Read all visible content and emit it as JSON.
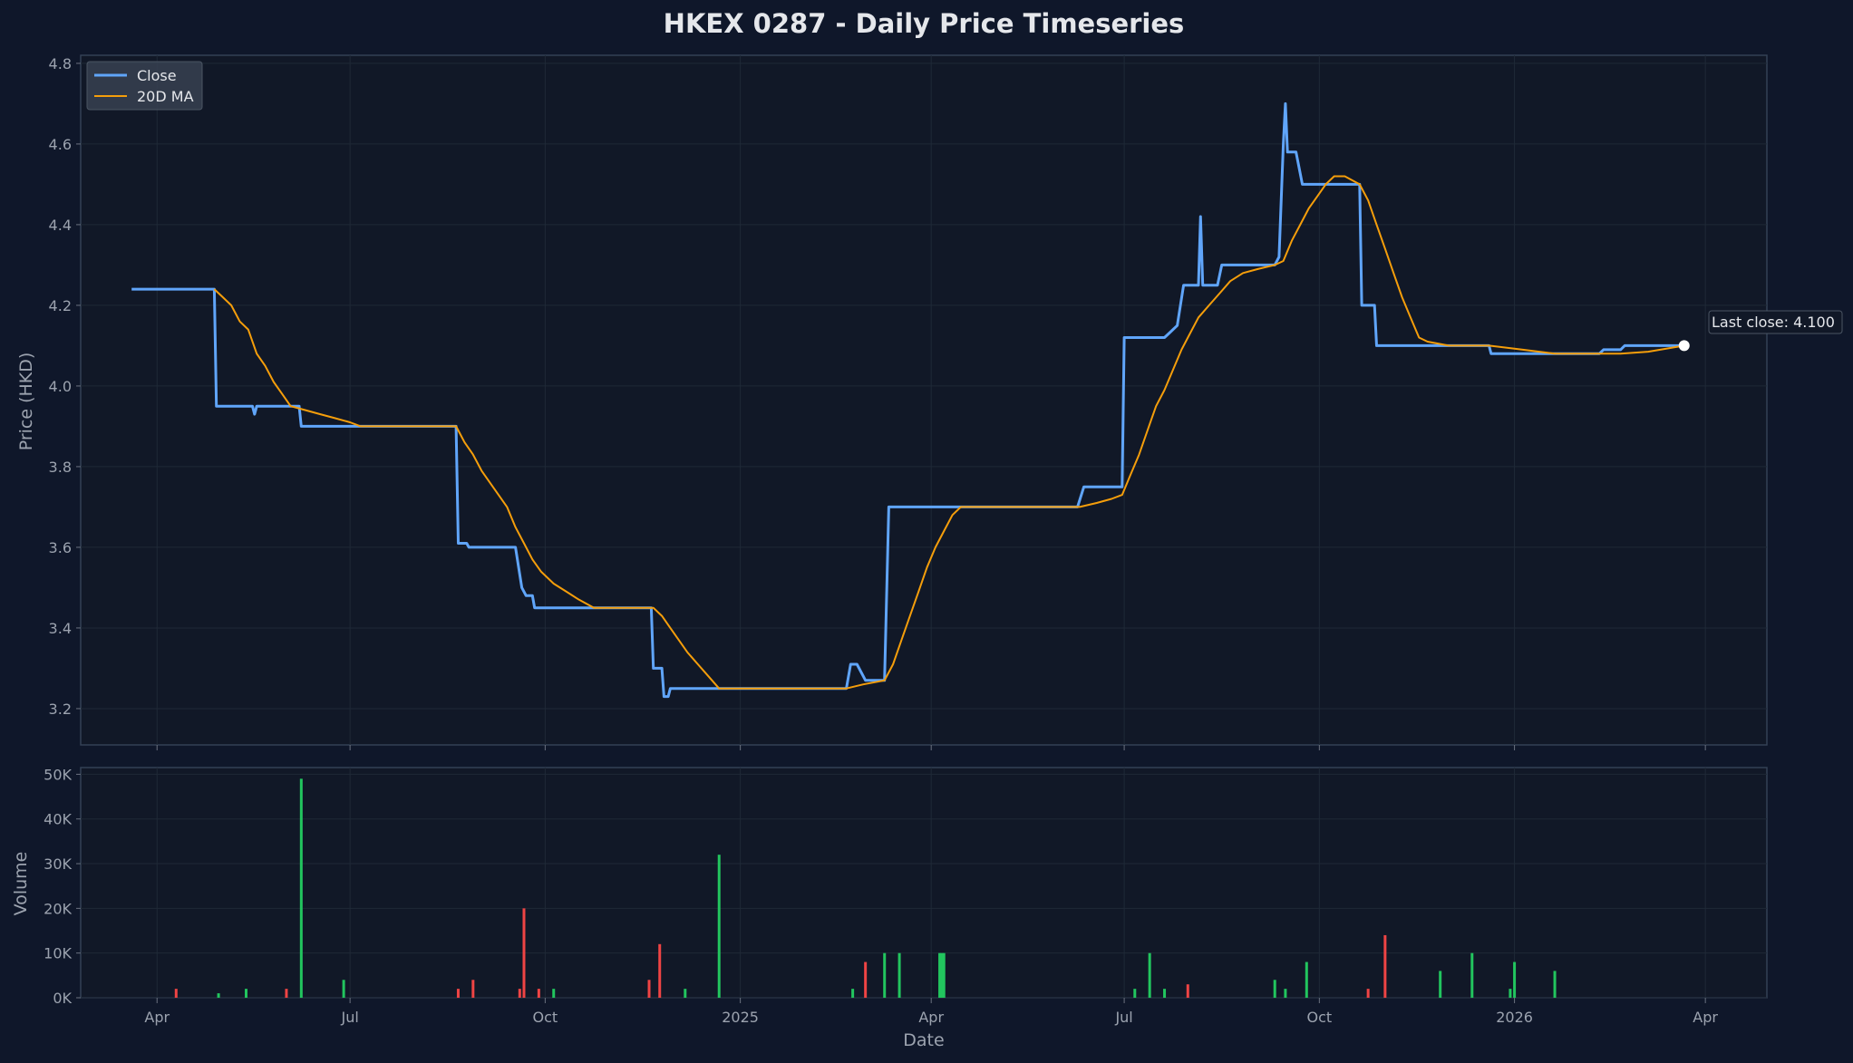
{
  "chart_data": {
    "type": "line",
    "title": "HKEX 0287 - Daily Price Timeseries",
    "xlabel": "Date",
    "ylabel": "Price (HKD)",
    "volume_ylabel": "Volume",
    "x_ticks": [
      "Apr",
      "Jul",
      "Oct",
      "2025",
      "Apr",
      "Jul",
      "Oct",
      "2026",
      "Apr"
    ],
    "x_tick_dates": [
      "2024-04-01",
      "2024-07-01",
      "2024-10-01",
      "2025-01-01",
      "2025-04-01",
      "2025-07-01",
      "2025-10-01",
      "2026-01-01",
      "2026-04-01"
    ],
    "xlim": [
      "2024-02-25",
      "2026-04-30"
    ],
    "ylim": [
      3.11,
      4.82
    ],
    "y_ticks": [
      "3.2",
      "3.4",
      "3.6",
      "3.8",
      "4.0",
      "4.2",
      "4.4",
      "4.6",
      "4.8"
    ],
    "volume_ylim": [
      0,
      51500
    ],
    "volume_ticks": [
      "0K",
      "10K",
      "20K",
      "30K",
      "40K",
      "50K"
    ],
    "legend": {
      "position": "top-left",
      "entries": [
        "Close",
        "20D MA"
      ]
    },
    "grid": true,
    "annotation": "Last close: 4.100",
    "colors": {
      "background": "#0f172a",
      "plot_bg": "#111827",
      "close": "#60a5fa",
      "ma": "#f59e0b",
      "up": "#22c55e",
      "down": "#ef4444",
      "grid": "#1f2937",
      "spine": "#334155"
    },
    "series": [
      {
        "name": "Close",
        "points": [
          [
            "2024-03-20",
            4.24
          ],
          [
            "2024-04-28",
            4.24
          ],
          [
            "2024-04-29",
            3.95
          ],
          [
            "2024-05-16",
            3.95
          ],
          [
            "2024-05-17",
            3.93
          ],
          [
            "2024-05-18",
            3.95
          ],
          [
            "2024-06-07",
            3.95
          ],
          [
            "2024-06-08",
            3.9
          ],
          [
            "2024-08-20",
            3.9
          ],
          [
            "2024-08-21",
            3.61
          ],
          [
            "2024-08-25",
            3.61
          ],
          [
            "2024-08-26",
            3.6
          ],
          [
            "2024-09-17",
            3.6
          ],
          [
            "2024-09-20",
            3.5
          ],
          [
            "2024-09-22",
            3.48
          ],
          [
            "2024-09-25",
            3.48
          ],
          [
            "2024-09-26",
            3.45
          ],
          [
            "2024-11-20",
            3.45
          ],
          [
            "2024-11-21",
            3.3
          ],
          [
            "2024-11-25",
            3.3
          ],
          [
            "2024-11-26",
            3.23
          ],
          [
            "2024-11-28",
            3.23
          ],
          [
            "2024-11-29",
            3.25
          ],
          [
            "2025-02-20",
            3.25
          ],
          [
            "2025-02-22",
            3.31
          ],
          [
            "2025-02-25",
            3.31
          ],
          [
            "2025-03-01",
            3.27
          ],
          [
            "2025-03-10",
            3.27
          ],
          [
            "2025-03-12",
            3.7
          ],
          [
            "2025-05-20",
            3.7
          ],
          [
            "2025-06-09",
            3.7
          ],
          [
            "2025-06-12",
            3.75
          ],
          [
            "2025-06-30",
            3.75
          ],
          [
            "2025-07-01",
            4.12
          ],
          [
            "2025-07-20",
            4.12
          ],
          [
            "2025-07-22",
            4.13
          ],
          [
            "2025-07-26",
            4.15
          ],
          [
            "2025-07-29",
            4.25
          ],
          [
            "2025-08-05",
            4.25
          ],
          [
            "2025-08-06",
            4.42
          ],
          [
            "2025-08-07",
            4.25
          ],
          [
            "2025-08-14",
            4.25
          ],
          [
            "2025-08-16",
            4.3
          ],
          [
            "2025-09-10",
            4.3
          ],
          [
            "2025-09-12",
            4.32
          ],
          [
            "2025-09-14",
            4.6
          ],
          [
            "2025-09-15",
            4.7
          ],
          [
            "2025-09-16",
            4.58
          ],
          [
            "2025-09-20",
            4.58
          ],
          [
            "2025-09-23",
            4.5
          ],
          [
            "2025-10-20",
            4.5
          ],
          [
            "2025-10-21",
            4.2
          ],
          [
            "2025-10-27",
            4.2
          ],
          [
            "2025-10-28",
            4.1
          ],
          [
            "2025-12-20",
            4.1
          ],
          [
            "2025-12-21",
            4.08
          ],
          [
            "2026-02-10",
            4.08
          ],
          [
            "2026-02-12",
            4.09
          ],
          [
            "2026-02-20",
            4.09
          ],
          [
            "2026-02-22",
            4.1
          ],
          [
            "2026-03-22",
            4.1
          ]
        ]
      },
      {
        "name": "20D MA",
        "points": [
          [
            "2024-04-28",
            4.24
          ],
          [
            "2024-05-02",
            4.22
          ],
          [
            "2024-05-06",
            4.2
          ],
          [
            "2024-05-10",
            4.16
          ],
          [
            "2024-05-14",
            4.14
          ],
          [
            "2024-05-18",
            4.08
          ],
          [
            "2024-05-22",
            4.05
          ],
          [
            "2024-05-26",
            4.01
          ],
          [
            "2024-05-30",
            3.98
          ],
          [
            "2024-06-03",
            3.95
          ],
          [
            "2024-06-10",
            3.94
          ],
          [
            "2024-06-17",
            3.93
          ],
          [
            "2024-06-24",
            3.92
          ],
          [
            "2024-07-01",
            3.91
          ],
          [
            "2024-07-06",
            3.9
          ],
          [
            "2024-08-20",
            3.9
          ],
          [
            "2024-08-24",
            3.86
          ],
          [
            "2024-08-28",
            3.83
          ],
          [
            "2024-09-01",
            3.79
          ],
          [
            "2024-09-05",
            3.76
          ],
          [
            "2024-09-09",
            3.73
          ],
          [
            "2024-09-13",
            3.7
          ],
          [
            "2024-09-17",
            3.65
          ],
          [
            "2024-09-21",
            3.61
          ],
          [
            "2024-09-25",
            3.57
          ],
          [
            "2024-09-29",
            3.54
          ],
          [
            "2024-10-05",
            3.51
          ],
          [
            "2024-10-11",
            3.49
          ],
          [
            "2024-10-17",
            3.47
          ],
          [
            "2024-10-24",
            3.45
          ],
          [
            "2024-11-21",
            3.45
          ],
          [
            "2024-11-25",
            3.43
          ],
          [
            "2024-11-29",
            3.4
          ],
          [
            "2024-12-03",
            3.37
          ],
          [
            "2024-12-07",
            3.34
          ],
          [
            "2024-12-12",
            3.31
          ],
          [
            "2024-12-17",
            3.28
          ],
          [
            "2024-12-22",
            3.25
          ],
          [
            "2025-02-20",
            3.25
          ],
          [
            "2025-02-28",
            3.26
          ],
          [
            "2025-03-10",
            3.27
          ],
          [
            "2025-03-14",
            3.31
          ],
          [
            "2025-03-18",
            3.37
          ],
          [
            "2025-03-22",
            3.43
          ],
          [
            "2025-03-26",
            3.49
          ],
          [
            "2025-03-30",
            3.55
          ],
          [
            "2025-04-03",
            3.6
          ],
          [
            "2025-04-07",
            3.64
          ],
          [
            "2025-04-11",
            3.68
          ],
          [
            "2025-04-15",
            3.7
          ],
          [
            "2025-06-10",
            3.7
          ],
          [
            "2025-06-18",
            3.71
          ],
          [
            "2025-06-25",
            3.72
          ],
          [
            "2025-06-30",
            3.73
          ],
          [
            "2025-07-04",
            3.78
          ],
          [
            "2025-07-08",
            3.83
          ],
          [
            "2025-07-12",
            3.89
          ],
          [
            "2025-07-16",
            3.95
          ],
          [
            "2025-07-20",
            3.99
          ],
          [
            "2025-07-24",
            4.04
          ],
          [
            "2025-07-28",
            4.09
          ],
          [
            "2025-08-01",
            4.13
          ],
          [
            "2025-08-05",
            4.17
          ],
          [
            "2025-08-10",
            4.2
          ],
          [
            "2025-08-15",
            4.23
          ],
          [
            "2025-08-20",
            4.26
          ],
          [
            "2025-08-26",
            4.28
          ],
          [
            "2025-09-02",
            4.29
          ],
          [
            "2025-09-10",
            4.3
          ],
          [
            "2025-09-14",
            4.31
          ],
          [
            "2025-09-18",
            4.36
          ],
          [
            "2025-09-22",
            4.4
          ],
          [
            "2025-09-26",
            4.44
          ],
          [
            "2025-09-30",
            4.47
          ],
          [
            "2025-10-04",
            4.5
          ],
          [
            "2025-10-08",
            4.52
          ],
          [
            "2025-10-13",
            4.52
          ],
          [
            "2025-10-20",
            4.5
          ],
          [
            "2025-10-24",
            4.46
          ],
          [
            "2025-10-28",
            4.4
          ],
          [
            "2025-11-01",
            4.34
          ],
          [
            "2025-11-05",
            4.28
          ],
          [
            "2025-11-09",
            4.22
          ],
          [
            "2025-11-13",
            4.17
          ],
          [
            "2025-11-17",
            4.12
          ],
          [
            "2025-11-21",
            4.11
          ],
          [
            "2025-12-01",
            4.1
          ],
          [
            "2025-12-20",
            4.1
          ],
          [
            "2026-01-05",
            4.09
          ],
          [
            "2026-01-20",
            4.08
          ],
          [
            "2026-02-20",
            4.08
          ],
          [
            "2026-03-05",
            4.085
          ],
          [
            "2026-03-22",
            4.1
          ]
        ]
      },
      {
        "name": "Volume",
        "bars": [
          [
            "2024-04-10",
            2000,
            "down"
          ],
          [
            "2024-04-30",
            1000,
            "up"
          ],
          [
            "2024-05-13",
            2000,
            "up"
          ],
          [
            "2024-06-01",
            2000,
            "down"
          ],
          [
            "2024-06-08",
            49000,
            "up"
          ],
          [
            "2024-06-28",
            4000,
            "up"
          ],
          [
            "2024-08-21",
            2000,
            "down"
          ],
          [
            "2024-08-28",
            4000,
            "down"
          ],
          [
            "2024-09-19",
            2000,
            "down"
          ],
          [
            "2024-09-21",
            20000,
            "down"
          ],
          [
            "2024-09-28",
            2000,
            "down"
          ],
          [
            "2024-10-05",
            2000,
            "up"
          ],
          [
            "2024-11-19",
            4000,
            "down"
          ],
          [
            "2024-11-24",
            12000,
            "down"
          ],
          [
            "2024-12-06",
            2000,
            "up"
          ],
          [
            "2024-12-22",
            32000,
            "up"
          ],
          [
            "2025-02-23",
            2000,
            "up"
          ],
          [
            "2025-03-01",
            8000,
            "down"
          ],
          [
            "2025-03-10",
            10000,
            "up"
          ],
          [
            "2025-03-17",
            10000,
            "up"
          ],
          [
            "2025-04-05",
            10000,
            "up"
          ],
          [
            "2025-04-06",
            10000,
            "up"
          ],
          [
            "2025-04-07",
            10000,
            "up"
          ],
          [
            "2025-07-06",
            2000,
            "up"
          ],
          [
            "2025-07-13",
            10000,
            "up"
          ],
          [
            "2025-07-20",
            2000,
            "up"
          ],
          [
            "2025-07-31",
            3000,
            "down"
          ],
          [
            "2025-09-10",
            4000,
            "up"
          ],
          [
            "2025-09-15",
            2000,
            "up"
          ],
          [
            "2025-09-25",
            8000,
            "up"
          ],
          [
            "2025-10-24",
            2000,
            "down"
          ],
          [
            "2025-11-01",
            14000,
            "down"
          ],
          [
            "2025-11-27",
            6000,
            "up"
          ],
          [
            "2025-12-12",
            10000,
            "up"
          ],
          [
            "2025-12-30",
            2000,
            "up"
          ],
          [
            "2026-01-01",
            8000,
            "up"
          ],
          [
            "2026-01-20",
            6000,
            "up"
          ]
        ]
      }
    ]
  }
}
